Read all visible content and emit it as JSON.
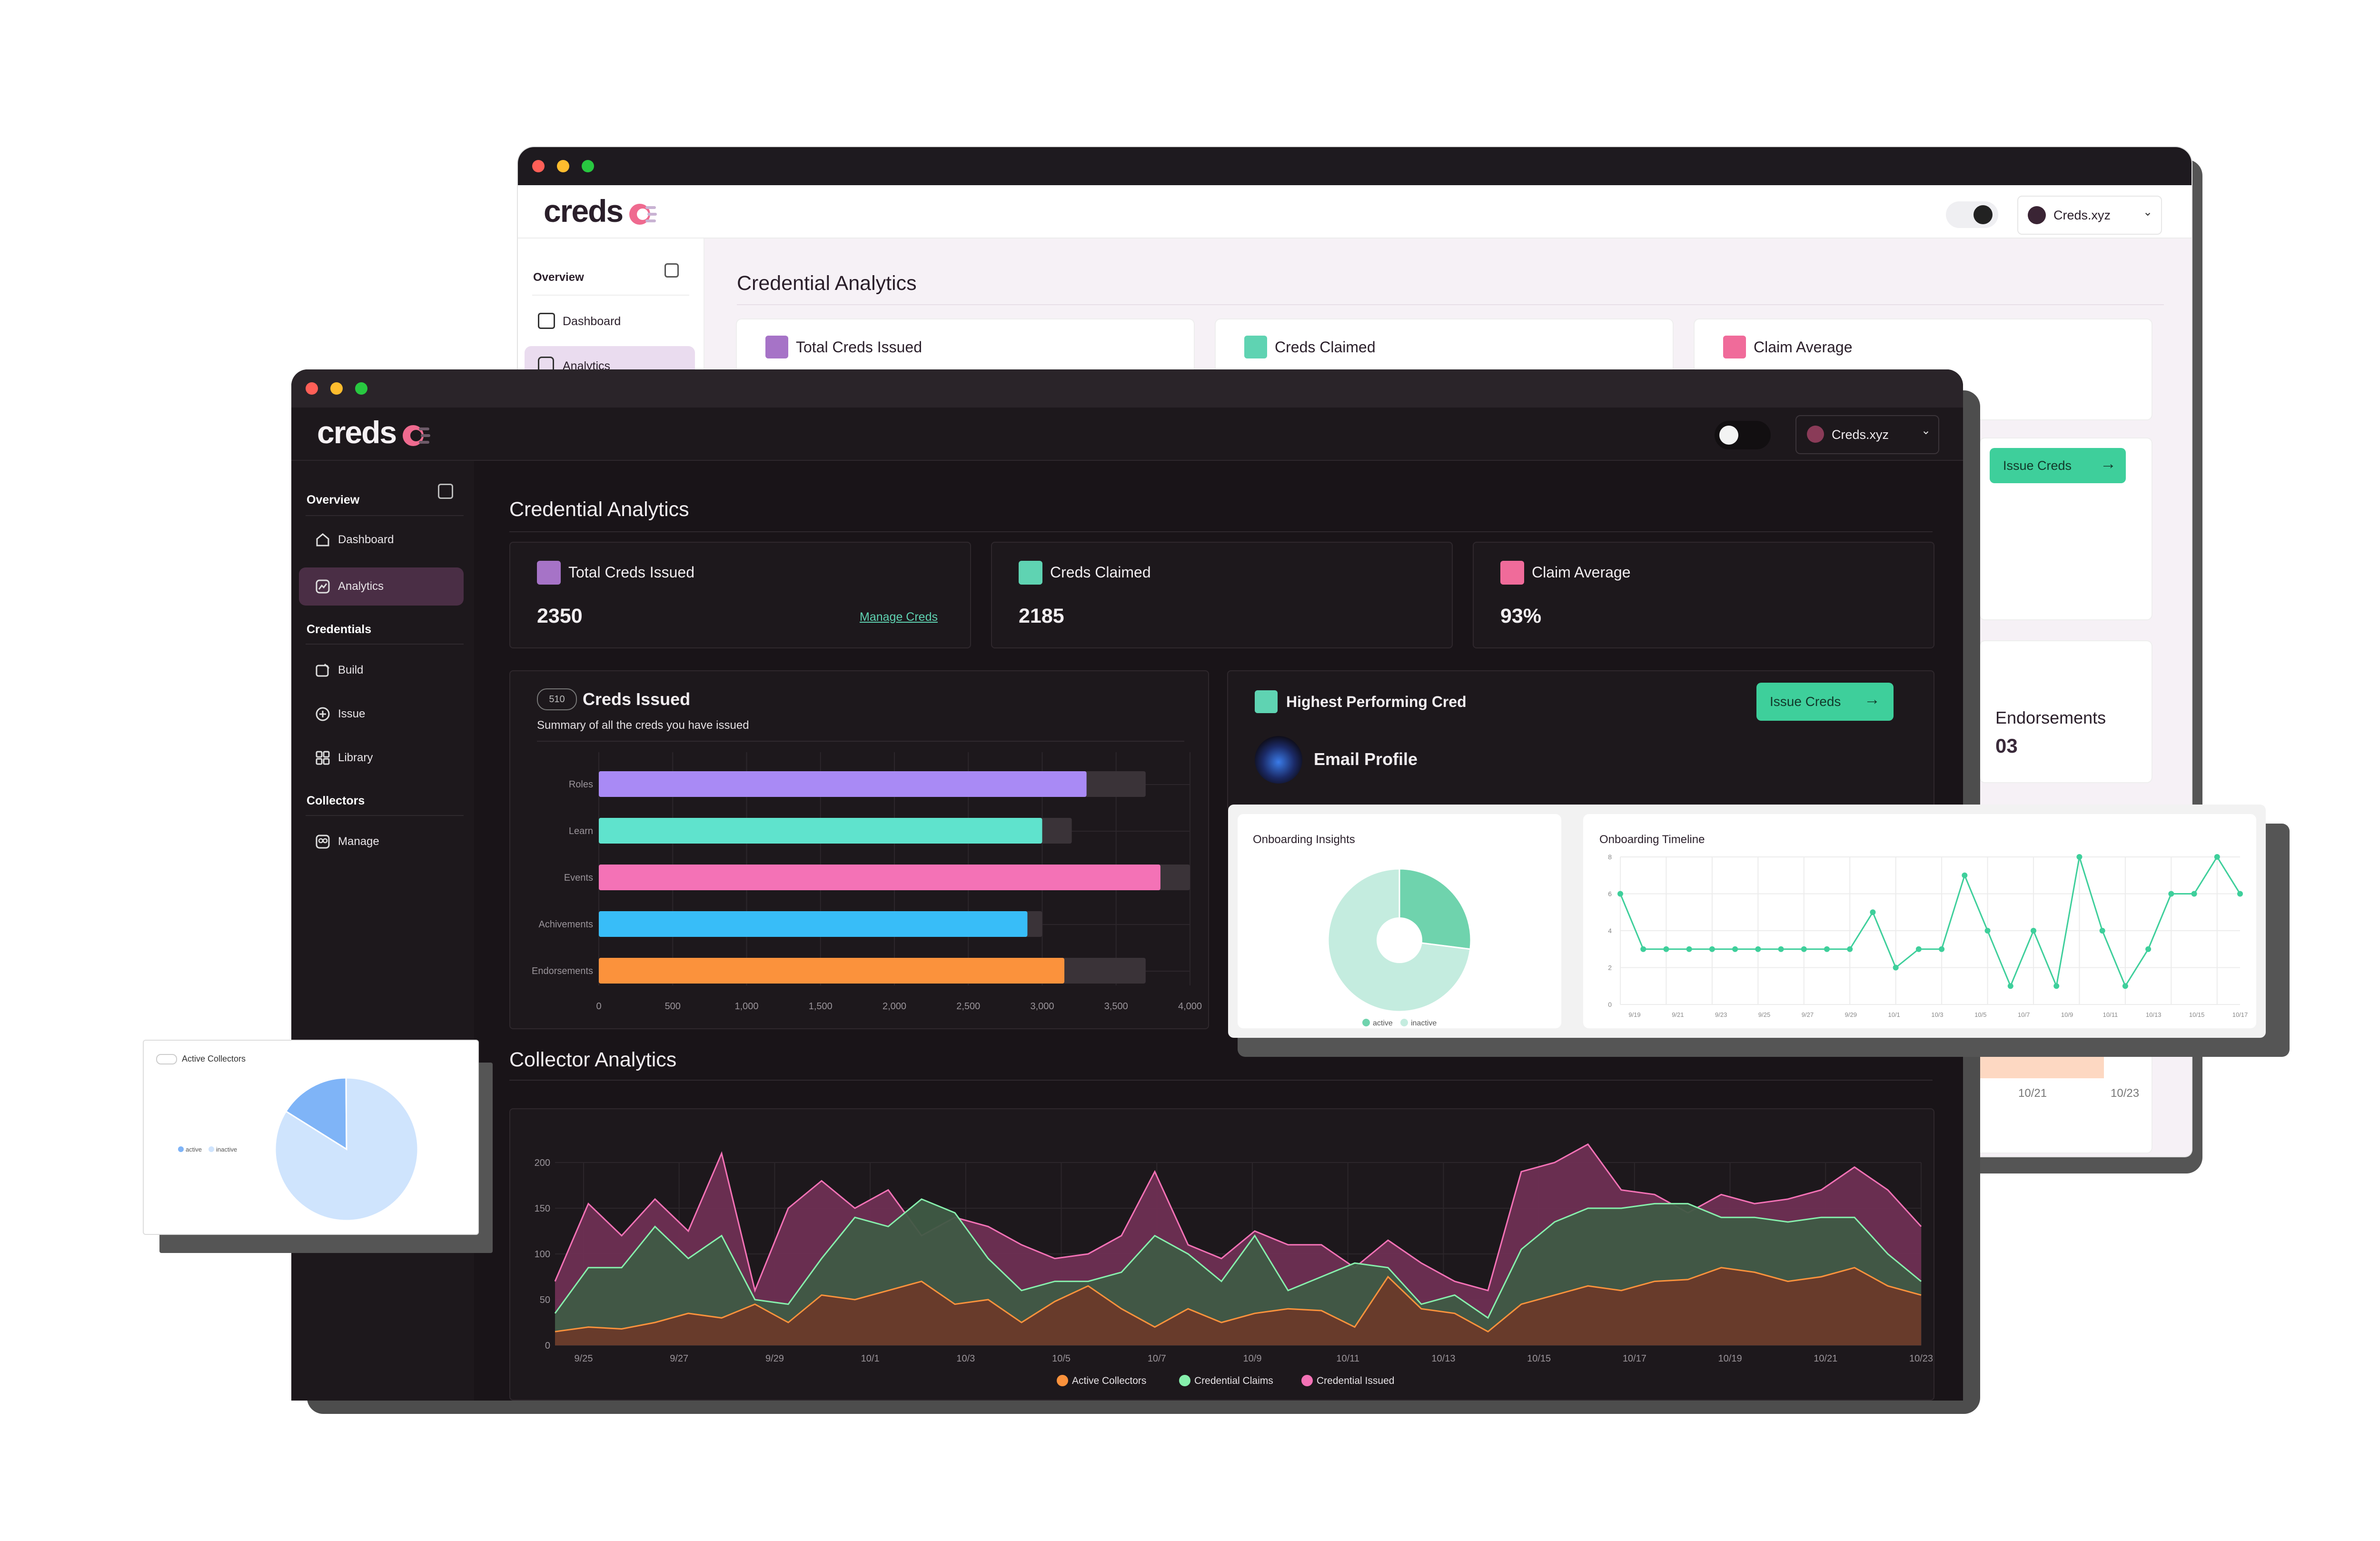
{
  "app": {
    "logo_text": "creds",
    "account": "Creds.xyz"
  },
  "back_window": {
    "sidebar": {
      "overview_label": "Overview",
      "items": [
        "Dashboard",
        "Analytics"
      ]
    },
    "page_title": "Credential Analytics",
    "stat_labels": [
      "Total Creds Issued",
      "Creds Claimed",
      "Claim Average"
    ],
    "issue_button": "Issue Creds",
    "endorsements": {
      "label": "Endorsements",
      "value": "03"
    },
    "x_ticks": [
      "10/21",
      "10/23"
    ]
  },
  "front_window": {
    "sidebar": {
      "overview_label": "Overview",
      "overview_items": [
        "Dashboard",
        "Analytics"
      ],
      "credentials_label": "Credentials",
      "credentials_items": [
        "Build",
        "Issue",
        "Library"
      ],
      "collectors_label": "Collectors",
      "collectors_items": [
        "Manage"
      ]
    },
    "page_title": "Credential Analytics",
    "stats": [
      {
        "label": "Total Creds Issued",
        "value": "2350",
        "link": "Manage Creds",
        "color": "#a673c7"
      },
      {
        "label": "Creds Claimed",
        "value": "2185",
        "link": "",
        "color": "#5fd3b2"
      },
      {
        "label": "Claim Average",
        "value": "93%",
        "link": "",
        "color": "#f06b9a"
      }
    ],
    "creds_issued": {
      "badge": "510",
      "title": "Creds Issued",
      "subtitle": "Summary of all the creds you have issued"
    },
    "highest_performing": {
      "label": "Highest Performing Cred",
      "cred_name": "Email Profile",
      "button": "Issue Creds"
    },
    "collector_title": "Collector Analytics"
  },
  "colors": {
    "purple": "#a673c7",
    "teal": "#5fd3b2",
    "pink": "#f06b9a",
    "accent_green": "#3ecf9b"
  },
  "chart_data": [
    {
      "type": "bar",
      "orientation": "horizontal",
      "categories": [
        "Roles",
        "Learn",
        "Events",
        "Achivements",
        "Endorsements"
      ],
      "series": [
        {
          "values": [
            3300,
            3000,
            3800,
            2900,
            3150
          ]
        },
        {
          "values": [
            3700,
            3200,
            4000,
            3000,
            3700
          ]
        }
      ],
      "colors": [
        "#a98af5",
        "#5fe3cd",
        "#f472b6",
        "#38bdf8",
        "#fb923c"
      ],
      "x_ticks": [
        "0",
        "500",
        "1,000",
        "1,500",
        "2,000",
        "2,500",
        "3,000",
        "3,500",
        "4,000"
      ],
      "xlim": [
        0,
        4000
      ]
    },
    {
      "type": "pie",
      "title": "Onboarding Insights",
      "labels": [
        "active",
        "inactive"
      ],
      "values": [
        27,
        73
      ],
      "colors": [
        "#6fd3ad",
        "#c4ecdf"
      ]
    },
    {
      "type": "line",
      "title": "Onboarding Timeline",
      "values": [
        6,
        3,
        3,
        3,
        3,
        3,
        3,
        3,
        3,
        3,
        3,
        5,
        2,
        3,
        3,
        7,
        4,
        1,
        4,
        1,
        8,
        4,
        1,
        3,
        6,
        6,
        8,
        6
      ],
      "y_ticks": [
        "8",
        "6",
        "4",
        "2",
        "0"
      ],
      "x_ticks": [
        "9/19",
        "9/21",
        "9/23",
        "9/25",
        "9/27",
        "9/29",
        "10/1",
        "10/3",
        "10/5",
        "10/7",
        "10/9",
        "10/11",
        "10/13",
        "10/15",
        "10/17"
      ],
      "ylim": [
        0,
        8
      ],
      "color": "#3ecf9b"
    },
    {
      "type": "area",
      "title": "Collector Analytics",
      "x_ticks": [
        "9/25",
        "9/27",
        "9/29",
        "10/1",
        "10/3",
        "10/5",
        "10/7",
        "10/9",
        "10/11",
        "10/13",
        "10/15",
        "10/17",
        "10/19",
        "10/21",
        "10/23"
      ],
      "y_ticks": [
        "200",
        "150",
        "100",
        "50",
        "0"
      ],
      "ylim": [
        0,
        200
      ],
      "series": [
        {
          "name": "Active Collectors",
          "color": "#fb923c",
          "values": [
            15,
            20,
            18,
            25,
            35,
            30,
            45,
            25,
            55,
            50,
            60,
            70,
            45,
            50,
            25,
            48,
            65,
            40,
            20,
            40,
            25,
            35,
            40,
            38,
            20,
            75,
            40,
            35,
            15,
            45,
            55,
            65,
            60,
            70,
            72,
            85,
            80,
            70,
            75,
            85,
            65,
            55
          ]
        },
        {
          "name": "Credential Claims",
          "color": "#86efac",
          "values": [
            35,
            85,
            85,
            130,
            95,
            120,
            50,
            45,
            95,
            140,
            130,
            160,
            145,
            95,
            60,
            70,
            70,
            80,
            120,
            100,
            70,
            120,
            60,
            75,
            90,
            85,
            45,
            55,
            30,
            105,
            135,
            150,
            150,
            155,
            155,
            140,
            140,
            135,
            140,
            140,
            100,
            70
          ]
        },
        {
          "name": "Credential Issued",
          "color": "#f472b6",
          "values": [
            70,
            155,
            120,
            160,
            125,
            210,
            60,
            150,
            180,
            150,
            170,
            120,
            140,
            130,
            110,
            95,
            100,
            120,
            190,
            110,
            95,
            125,
            110,
            110,
            85,
            115,
            90,
            70,
            60,
            190,
            200,
            220,
            170,
            165,
            145,
            165,
            155,
            160,
            170,
            195,
            170,
            130
          ]
        }
      ]
    },
    {
      "type": "pie",
      "title": "Active Collectors",
      "labels": [
        "active",
        "inactive"
      ],
      "values": [
        16,
        84
      ],
      "colors": [
        "#7fb4f7",
        "#cfe4fd"
      ]
    }
  ]
}
